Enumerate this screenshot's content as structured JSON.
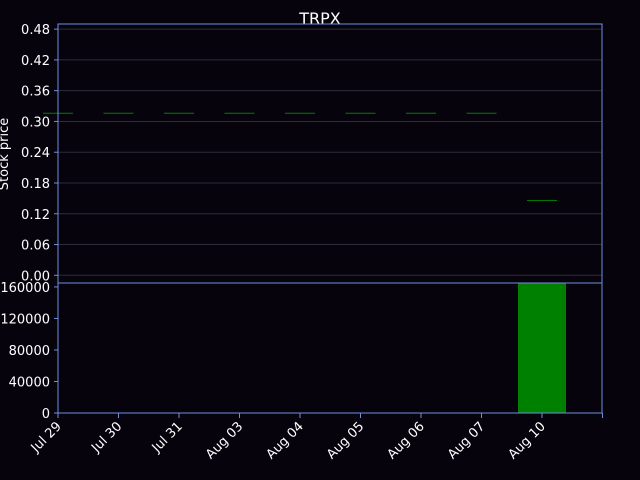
{
  "colors": {
    "background": "#06030d",
    "axis": "#6e8fe0",
    "grid": "#2e2b3a",
    "text": "#ffffff",
    "candle": "#008000",
    "volume": "#008000"
  },
  "chart_data": [
    {
      "type": "candlestick",
      "title": "TRPX",
      "xlabel": "",
      "ylabel": "Stock price",
      "ylim": [
        -0.015,
        0.49
      ],
      "yticks": [
        "0.00",
        "0.06",
        "0.12",
        "0.18",
        "0.24",
        "0.30",
        "0.36",
        "0.42",
        "0.48"
      ],
      "grid": true,
      "categories": [
        "Jul 29",
        "Jul 30",
        "Jul 31",
        "Aug 03",
        "Aug 04",
        "Aug 05",
        "Aug 06",
        "Aug 07",
        "Aug 10"
      ],
      "ohlc": [
        {
          "open": 0.316,
          "high": 0.316,
          "low": 0.316,
          "close": 0.316
        },
        {
          "open": 0.316,
          "high": 0.316,
          "low": 0.316,
          "close": 0.316
        },
        {
          "open": 0.316,
          "high": 0.316,
          "low": 0.316,
          "close": 0.316
        },
        {
          "open": 0.316,
          "high": 0.316,
          "low": 0.316,
          "close": 0.316
        },
        {
          "open": 0.316,
          "high": 0.316,
          "low": 0.316,
          "close": 0.316
        },
        {
          "open": 0.316,
          "high": 0.316,
          "low": 0.316,
          "close": 0.316
        },
        {
          "open": 0.316,
          "high": 0.316,
          "low": 0.316,
          "close": 0.316
        },
        {
          "open": 0.316,
          "high": 0.316,
          "low": 0.316,
          "close": 0.316
        },
        {
          "open": 0.146,
          "high": 0.146,
          "low": 0.146,
          "close": 0.146
        }
      ]
    },
    {
      "type": "bar",
      "title": "",
      "xlabel": "",
      "ylabel": "",
      "ylim": [
        0,
        165000
      ],
      "yticks": [
        "0",
        "40000",
        "80000",
        "120000",
        "160000"
      ],
      "grid": false,
      "categories": [
        "Jul 29",
        "Jul 30",
        "Jul 31",
        "Aug 03",
        "Aug 04",
        "Aug 05",
        "Aug 06",
        "Aug 07",
        "Aug 10"
      ],
      "values": [
        0,
        0,
        0,
        0,
        0,
        0,
        0,
        0,
        165000
      ]
    }
  ]
}
